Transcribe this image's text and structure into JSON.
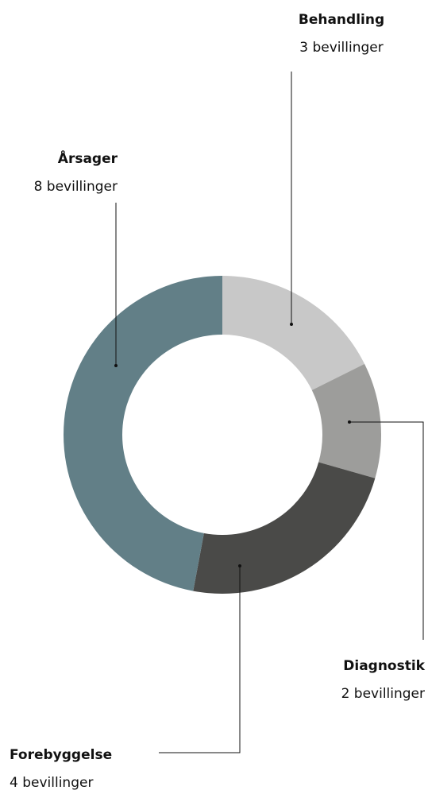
{
  "chart_data": {
    "type": "pie",
    "categories": [
      "Behandling",
      "Diagnostik",
      "Forebyggelse",
      "Årsager"
    ],
    "values": [
      3,
      2,
      4,
      8
    ],
    "value_labels": [
      "3 bevillinger",
      "2 bevillinger",
      "4 bevillinger",
      "8 bevillinger"
    ],
    "colors": [
      "#c8c8c8",
      "#9d9d9b",
      "#4a4a48",
      "#627f87"
    ]
  }
}
